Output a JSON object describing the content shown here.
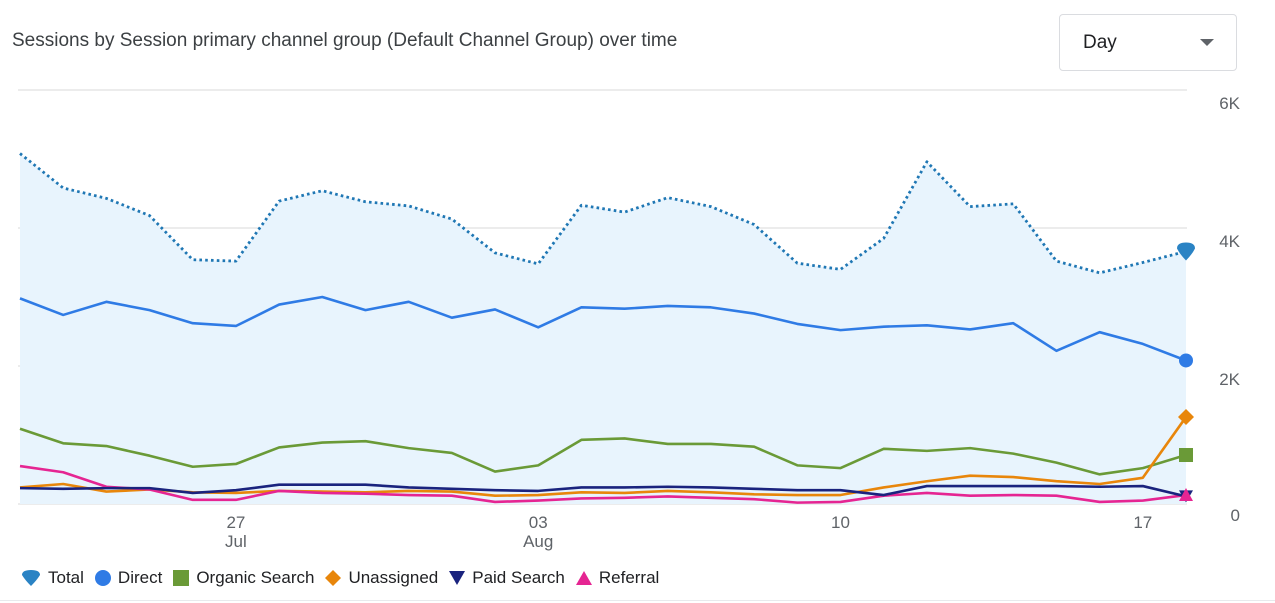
{
  "header": {
    "title": "Sessions by Session primary channel group (Default Channel Group) over time",
    "granularity": "Day"
  },
  "colors": {
    "Total": "#1a73e8",
    "Direct": "#2f7be5",
    "Organic Search": "#6a9a37",
    "Unassigned": "#e8860b",
    "Paid Search": "#1a237e",
    "Referral": "#e52592",
    "area": "#e8f4fd",
    "grid": "#e6e6e6"
  },
  "chart_data": {
    "type": "line",
    "ylim": [
      0,
      6000
    ],
    "yticks": [
      "0",
      "2K",
      "4K",
      "6K"
    ],
    "x_labels": [
      {
        "day": 27,
        "label": "27",
        "sub": "Jul"
      },
      {
        "day": 34,
        "label": "03",
        "sub": "Aug"
      },
      {
        "day": 41,
        "label": "10",
        "sub": ""
      },
      {
        "day": 48,
        "label": "17",
        "sub": ""
      }
    ],
    "x_start_day": 22,
    "x_end_day": 49,
    "series": [
      {
        "name": "Total",
        "style": "dotted",
        "marker": "pin",
        "values": [
          5080,
          4580,
          4430,
          4180,
          3540,
          3520,
          4390,
          4540,
          4380,
          4320,
          4130,
          3640,
          3480,
          4330,
          4230,
          4440,
          4310,
          4050,
          3490,
          3400,
          3850,
          4960,
          4310,
          4350,
          3520,
          3350,
          3500,
          3660
        ]
      },
      {
        "name": "Direct",
        "style": "solid",
        "marker": "circle",
        "values": [
          2980,
          2740,
          2930,
          2810,
          2620,
          2580,
          2890,
          3000,
          2810,
          2930,
          2700,
          2820,
          2560,
          2850,
          2830,
          2870,
          2850,
          2760,
          2610,
          2520,
          2570,
          2590,
          2530,
          2620,
          2220,
          2490,
          2320,
          2080
        ]
      },
      {
        "name": "Organic Search",
        "style": "solid",
        "marker": "square",
        "values": [
          1090,
          880,
          840,
          700,
          540,
          580,
          820,
          890,
          910,
          810,
          740,
          470,
          560,
          930,
          950,
          870,
          870,
          830,
          560,
          520,
          800,
          770,
          810,
          730,
          600,
          430,
          520,
          710
        ]
      },
      {
        "name": "Unassigned",
        "style": "solid",
        "marker": "diamond",
        "values": [
          240,
          290,
          180,
          210,
          170,
          160,
          190,
          180,
          170,
          190,
          180,
          120,
          130,
          170,
          160,
          190,
          170,
          140,
          130,
          130,
          240,
          330,
          410,
          390,
          330,
          290,
          380,
          1260
        ]
      },
      {
        "name": "Paid Search",
        "style": "solid",
        "marker": "triangle-down",
        "values": [
          230,
          220,
          230,
          230,
          160,
          200,
          280,
          280,
          280,
          240,
          220,
          200,
          190,
          240,
          240,
          250,
          240,
          220,
          200,
          200,
          130,
          260,
          260,
          260,
          260,
          250,
          260,
          110
        ]
      },
      {
        "name": "Referral",
        "style": "solid",
        "marker": "triangle-up",
        "values": [
          550,
          460,
          250,
          210,
          60,
          60,
          190,
          160,
          150,
          130,
          120,
          30,
          50,
          80,
          90,
          110,
          90,
          70,
          20,
          30,
          120,
          160,
          120,
          130,
          120,
          30,
          50,
          130
        ]
      }
    ],
    "legend": [
      "Total",
      "Direct",
      "Organic Search",
      "Unassigned",
      "Paid Search",
      "Referral"
    ],
    "legend_position": "bottom-left",
    "grid": true
  }
}
